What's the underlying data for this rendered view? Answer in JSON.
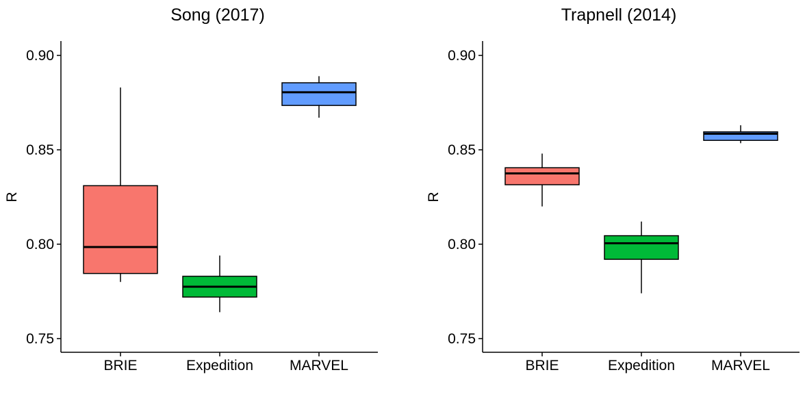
{
  "chart_data": [
    {
      "type": "boxplot",
      "title": "Song (2017)",
      "ylabel": "R",
      "xlabel": "",
      "ylim": [
        0.743,
        0.908
      ],
      "yticks": [
        "0.75",
        "0.80",
        "0.85",
        "0.90"
      ],
      "categories": [
        "BRIE",
        "Expedition",
        "MARVEL"
      ],
      "colors": [
        "#F8766D",
        "#00BA38",
        "#619CFF"
      ],
      "boxes": [
        {
          "category": "BRIE",
          "min": 0.78,
          "q1": 0.7845,
          "median": 0.7985,
          "q3": 0.831,
          "max": 0.883
        },
        {
          "category": "Expedition",
          "min": 0.764,
          "q1": 0.772,
          "median": 0.7775,
          "q3": 0.783,
          "max": 0.794
        },
        {
          "category": "MARVEL",
          "min": 0.867,
          "q1": 0.8735,
          "median": 0.8805,
          "q3": 0.8855,
          "max": 0.889
        }
      ]
    },
    {
      "type": "boxplot",
      "title": "Trapnell (2014)",
      "ylabel": "R",
      "xlabel": "",
      "ylim": [
        0.743,
        0.908
      ],
      "yticks": [
        "0.75",
        "0.80",
        "0.85",
        "0.90"
      ],
      "categories": [
        "BRIE",
        "Expedition",
        "MARVEL"
      ],
      "colors": [
        "#F8766D",
        "#00BA38",
        "#619CFF"
      ],
      "boxes": [
        {
          "category": "BRIE",
          "min": 0.82,
          "q1": 0.8315,
          "median": 0.8375,
          "q3": 0.8405,
          "max": 0.848
        },
        {
          "category": "Expedition",
          "min": 0.774,
          "q1": 0.792,
          "median": 0.8005,
          "q3": 0.8045,
          "max": 0.812
        },
        {
          "category": "MARVEL",
          "min": 0.8535,
          "q1": 0.855,
          "median": 0.8585,
          "q3": 0.8595,
          "max": 0.863
        }
      ]
    }
  ]
}
